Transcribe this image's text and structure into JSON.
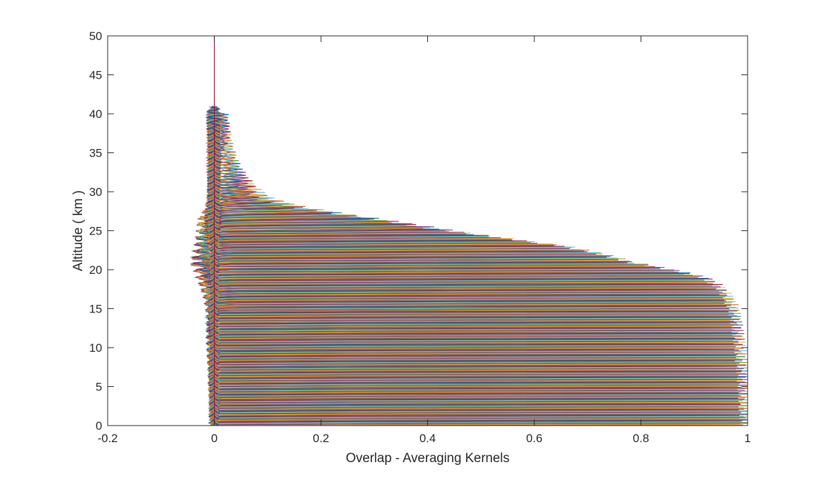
{
  "chart_data": {
    "type": "line",
    "title": "",
    "xlabel": "Overlap - Averaging Kernels",
    "ylabel": "Altitude ( km )",
    "xlim": [
      -0.2,
      1
    ],
    "ylim": [
      0,
      50
    ],
    "xticks": [
      -0.2,
      0,
      0.2,
      0.4,
      0.6,
      0.8,
      1
    ],
    "xtick_labels": [
      "-0.2",
      "0",
      "0.2",
      "0.4",
      "0.6",
      "0.8",
      "1"
    ],
    "yticks": [
      0,
      5,
      10,
      15,
      20,
      25,
      30,
      35,
      40,
      45,
      50
    ],
    "ytick_labels": [
      "0",
      "5",
      "10",
      "15",
      "20",
      "25",
      "30",
      "35",
      "40",
      "45",
      "50"
    ],
    "grid": false,
    "legend": "none",
    "series_palette": [
      "#0072bd",
      "#d95319",
      "#edb120",
      "#7e2f8e",
      "#77ac30",
      "#4dbeee",
      "#a2142f"
    ],
    "kernel_count": 400,
    "altitude_step_km": 0.1,
    "peak_envelope": {
      "altitude_km": [
        0,
        5,
        10,
        13,
        15,
        17,
        18,
        19,
        20,
        21,
        22,
        23,
        24,
        25,
        26,
        27,
        28,
        29,
        30,
        31,
        32,
        33,
        34,
        35,
        36,
        38,
        39,
        40
      ],
      "max_value": [
        0.997,
        0.993,
        0.987,
        0.98,
        0.975,
        0.96,
        0.945,
        0.92,
        0.86,
        0.78,
        0.73,
        0.66,
        0.55,
        0.44,
        0.35,
        0.25,
        0.16,
        0.1,
        0.075,
        0.058,
        0.045,
        0.035,
        0.028,
        0.022,
        0.018,
        0.012,
        0.01,
        0.008
      ]
    },
    "negative_lobe": {
      "altitude_km": [
        0,
        5,
        10,
        14,
        16,
        17,
        18,
        19,
        20,
        21,
        22,
        23,
        24,
        25,
        26,
        27,
        28,
        30
      ],
      "min_value": [
        -0.003,
        -0.006,
        -0.01,
        -0.012,
        -0.018,
        -0.025,
        -0.03,
        -0.035,
        -0.045,
        -0.04,
        -0.035,
        -0.033,
        -0.03,
        -0.028,
        -0.02,
        -0.01,
        -0.005,
        -0.002
      ]
    },
    "zero_reference_color": "#a2142f"
  }
}
